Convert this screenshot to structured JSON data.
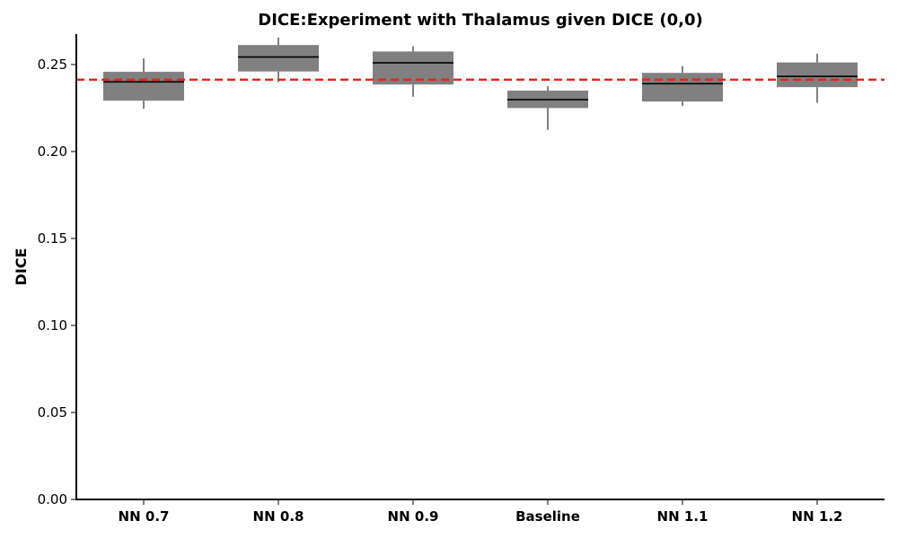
{
  "chart_data": {
    "type": "box",
    "title": "DICE:Experiment with Thalamus given DICE (0,0)",
    "xlabel": "",
    "ylabel": "DICE",
    "ylim": [
      0,
      0.2675
    ],
    "yticks": [
      "0.00",
      "0.05",
      "0.10",
      "0.15",
      "0.20",
      "0.25"
    ],
    "grid": false,
    "categories": [
      "NN 0.7",
      "NN 0.8",
      "NN 0.9",
      "Baseline",
      "NN 1.1",
      "NN 1.2"
    ],
    "boxes": [
      {
        "whisker_low": 0.2245,
        "q1": 0.2292,
        "median": 0.24,
        "q3": 0.2458,
        "whisker_high": 0.2535
      },
      {
        "whisker_low": 0.2398,
        "q1": 0.246,
        "median": 0.2543,
        "q3": 0.2612,
        "whisker_high": 0.2655
      },
      {
        "whisker_low": 0.2315,
        "q1": 0.2385,
        "median": 0.251,
        "q3": 0.2575,
        "whisker_high": 0.2605
      },
      {
        "whisker_low": 0.2125,
        "q1": 0.225,
        "median": 0.2298,
        "q3": 0.235,
        "whisker_high": 0.2375
      },
      {
        "whisker_low": 0.2262,
        "q1": 0.2287,
        "median": 0.239,
        "q3": 0.2452,
        "whisker_high": 0.249
      },
      {
        "whisker_low": 0.228,
        "q1": 0.237,
        "median": 0.2432,
        "q3": 0.2512,
        "whisker_high": 0.2562
      }
    ],
    "reference_line": {
      "value": 0.2413,
      "style": "dashed",
      "color": "#e8231a"
    },
    "colors": {
      "box_fill": "#808080",
      "median": "#000000",
      "whisker": "#000000",
      "axis": "#000000"
    }
  }
}
